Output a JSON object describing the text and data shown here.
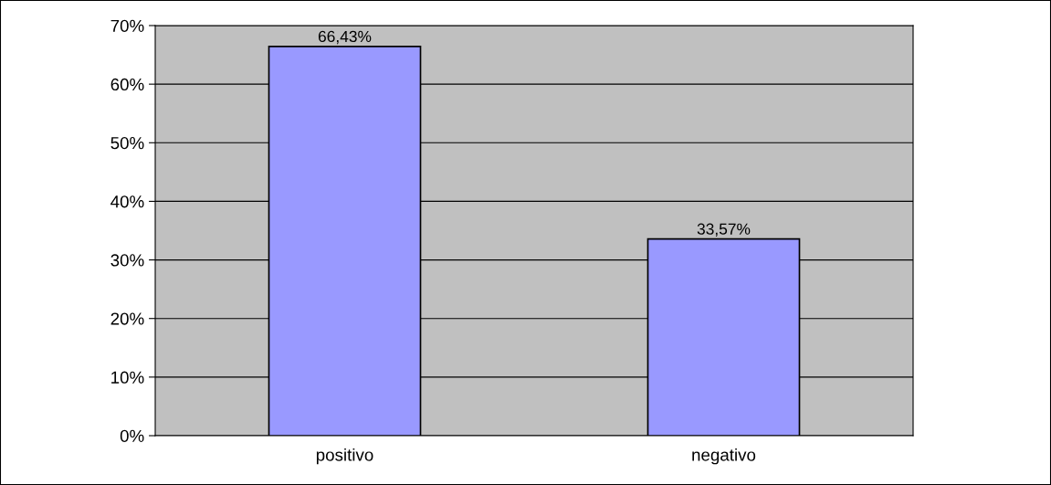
{
  "chart_data": {
    "type": "bar",
    "categories": [
      "positivo",
      "negativo"
    ],
    "values": [
      66.43,
      33.57
    ],
    "value_labels": [
      "66,43%",
      "33,57%"
    ],
    "color": "#9999ff",
    "ylim": [
      0,
      70
    ],
    "yticks": [
      {
        "value": 0,
        "label": "0%"
      },
      {
        "value": 10,
        "label": "10%"
      },
      {
        "value": 20,
        "label": "20%"
      },
      {
        "value": 30,
        "label": "30%"
      },
      {
        "value": 40,
        "label": "40%"
      },
      {
        "value": 50,
        "label": "50%"
      },
      {
        "value": 60,
        "label": "60%"
      },
      {
        "value": 70,
        "label": "70%"
      }
    ],
    "grid": "y"
  }
}
